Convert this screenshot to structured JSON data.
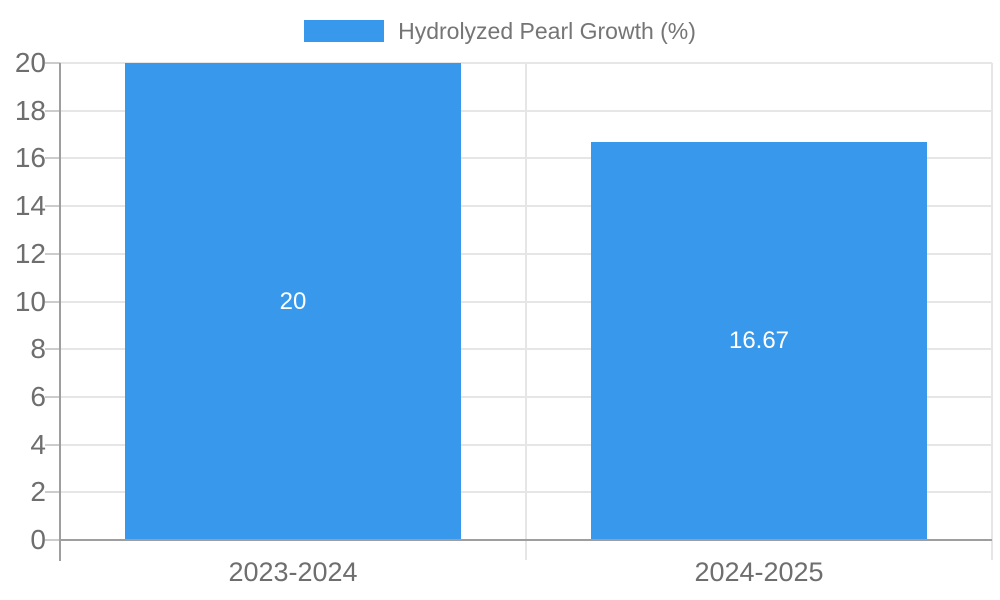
{
  "legend": {
    "label": "Hydrolyzed Pearl Growth (%)"
  },
  "colors": {
    "bar": "#3899ec",
    "grid": "#e6e6e6",
    "axis": "#9e9e9e",
    "tick": "#cccccc",
    "tick_text": "#6e6e6e",
    "legend_text": "#757575",
    "data_label_text": "#ffffff",
    "background": "#ffffff"
  },
  "chart_data": {
    "type": "bar",
    "title": "Hydrolyzed Pearl Growth (%)",
    "xlabel": "",
    "ylabel": "",
    "categories": [
      "2023-2024",
      "2024-2025"
    ],
    "series": [
      {
        "name": "Hydrolyzed Pearl Growth (%)",
        "values": [
          20,
          16.67
        ],
        "value_labels": [
          "20",
          "16.67"
        ]
      }
    ],
    "ylim": [
      0,
      20
    ],
    "ytick_step": 2,
    "grid": true,
    "legend_position": "top",
    "data_labels_position": "center-inside"
  }
}
